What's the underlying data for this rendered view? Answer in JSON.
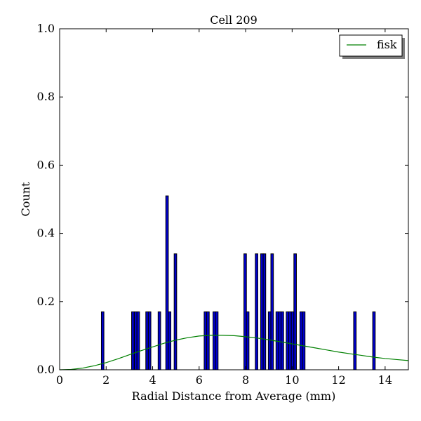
{
  "chart_data": {
    "type": "bar",
    "title": "Cell 209",
    "xlabel": "Radial Distance from Average (mm)",
    "ylabel": "Count",
    "xlim": [
      0,
      15
    ],
    "ylim": [
      0,
      1.0
    ],
    "xticks": [
      0,
      2,
      4,
      6,
      8,
      10,
      12,
      14
    ],
    "yticks": [
      0.0,
      0.2,
      0.4,
      0.6,
      0.8,
      1.0
    ],
    "grid": false,
    "legend_position": "top-right",
    "bar_color": "#0000cc",
    "bin_width": 0.11,
    "histogram": [
      {
        "x": 1.85,
        "y": 0.17
      },
      {
        "x": 3.15,
        "y": 0.17
      },
      {
        "x": 3.27,
        "y": 0.17
      },
      {
        "x": 3.38,
        "y": 0.17
      },
      {
        "x": 3.76,
        "y": 0.17
      },
      {
        "x": 3.87,
        "y": 0.17
      },
      {
        "x": 4.29,
        "y": 0.17
      },
      {
        "x": 4.62,
        "y": 0.51
      },
      {
        "x": 4.73,
        "y": 0.17
      },
      {
        "x": 4.98,
        "y": 0.34
      },
      {
        "x": 6.27,
        "y": 0.17
      },
      {
        "x": 6.38,
        "y": 0.17
      },
      {
        "x": 6.65,
        "y": 0.17
      },
      {
        "x": 6.76,
        "y": 0.17
      },
      {
        "x": 7.98,
        "y": 0.34
      },
      {
        "x": 8.09,
        "y": 0.17
      },
      {
        "x": 8.47,
        "y": 0.34
      },
      {
        "x": 8.7,
        "y": 0.34
      },
      {
        "x": 8.81,
        "y": 0.34
      },
      {
        "x": 9.03,
        "y": 0.17
      },
      {
        "x": 9.14,
        "y": 0.34
      },
      {
        "x": 9.36,
        "y": 0.17
      },
      {
        "x": 9.47,
        "y": 0.17
      },
      {
        "x": 9.58,
        "y": 0.17
      },
      {
        "x": 9.8,
        "y": 0.17
      },
      {
        "x": 9.91,
        "y": 0.17
      },
      {
        "x": 10.02,
        "y": 0.17
      },
      {
        "x": 10.13,
        "y": 0.34
      },
      {
        "x": 10.39,
        "y": 0.17
      },
      {
        "x": 10.5,
        "y": 0.17
      },
      {
        "x": 12.7,
        "y": 0.17
      },
      {
        "x": 13.52,
        "y": 0.17
      }
    ],
    "series": [
      {
        "name": "fisk",
        "color": "#008000",
        "x": [
          0,
          0.5,
          1,
          1.5,
          2,
          2.5,
          3,
          3.5,
          4,
          4.5,
          5,
          5.5,
          6,
          6.5,
          7,
          7.5,
          8,
          8.5,
          9,
          9.5,
          10,
          10.5,
          11,
          11.5,
          12,
          12.5,
          13,
          13.5,
          14,
          14.5,
          15
        ],
        "y": [
          0.0,
          0.001,
          0.005,
          0.012,
          0.021,
          0.032,
          0.044,
          0.056,
          0.067,
          0.078,
          0.087,
          0.094,
          0.099,
          0.101,
          0.101,
          0.1,
          0.097,
          0.093,
          0.088,
          0.082,
          0.076,
          0.07,
          0.064,
          0.058,
          0.052,
          0.047,
          0.042,
          0.037,
          0.033,
          0.03,
          0.027
        ]
      }
    ]
  }
}
